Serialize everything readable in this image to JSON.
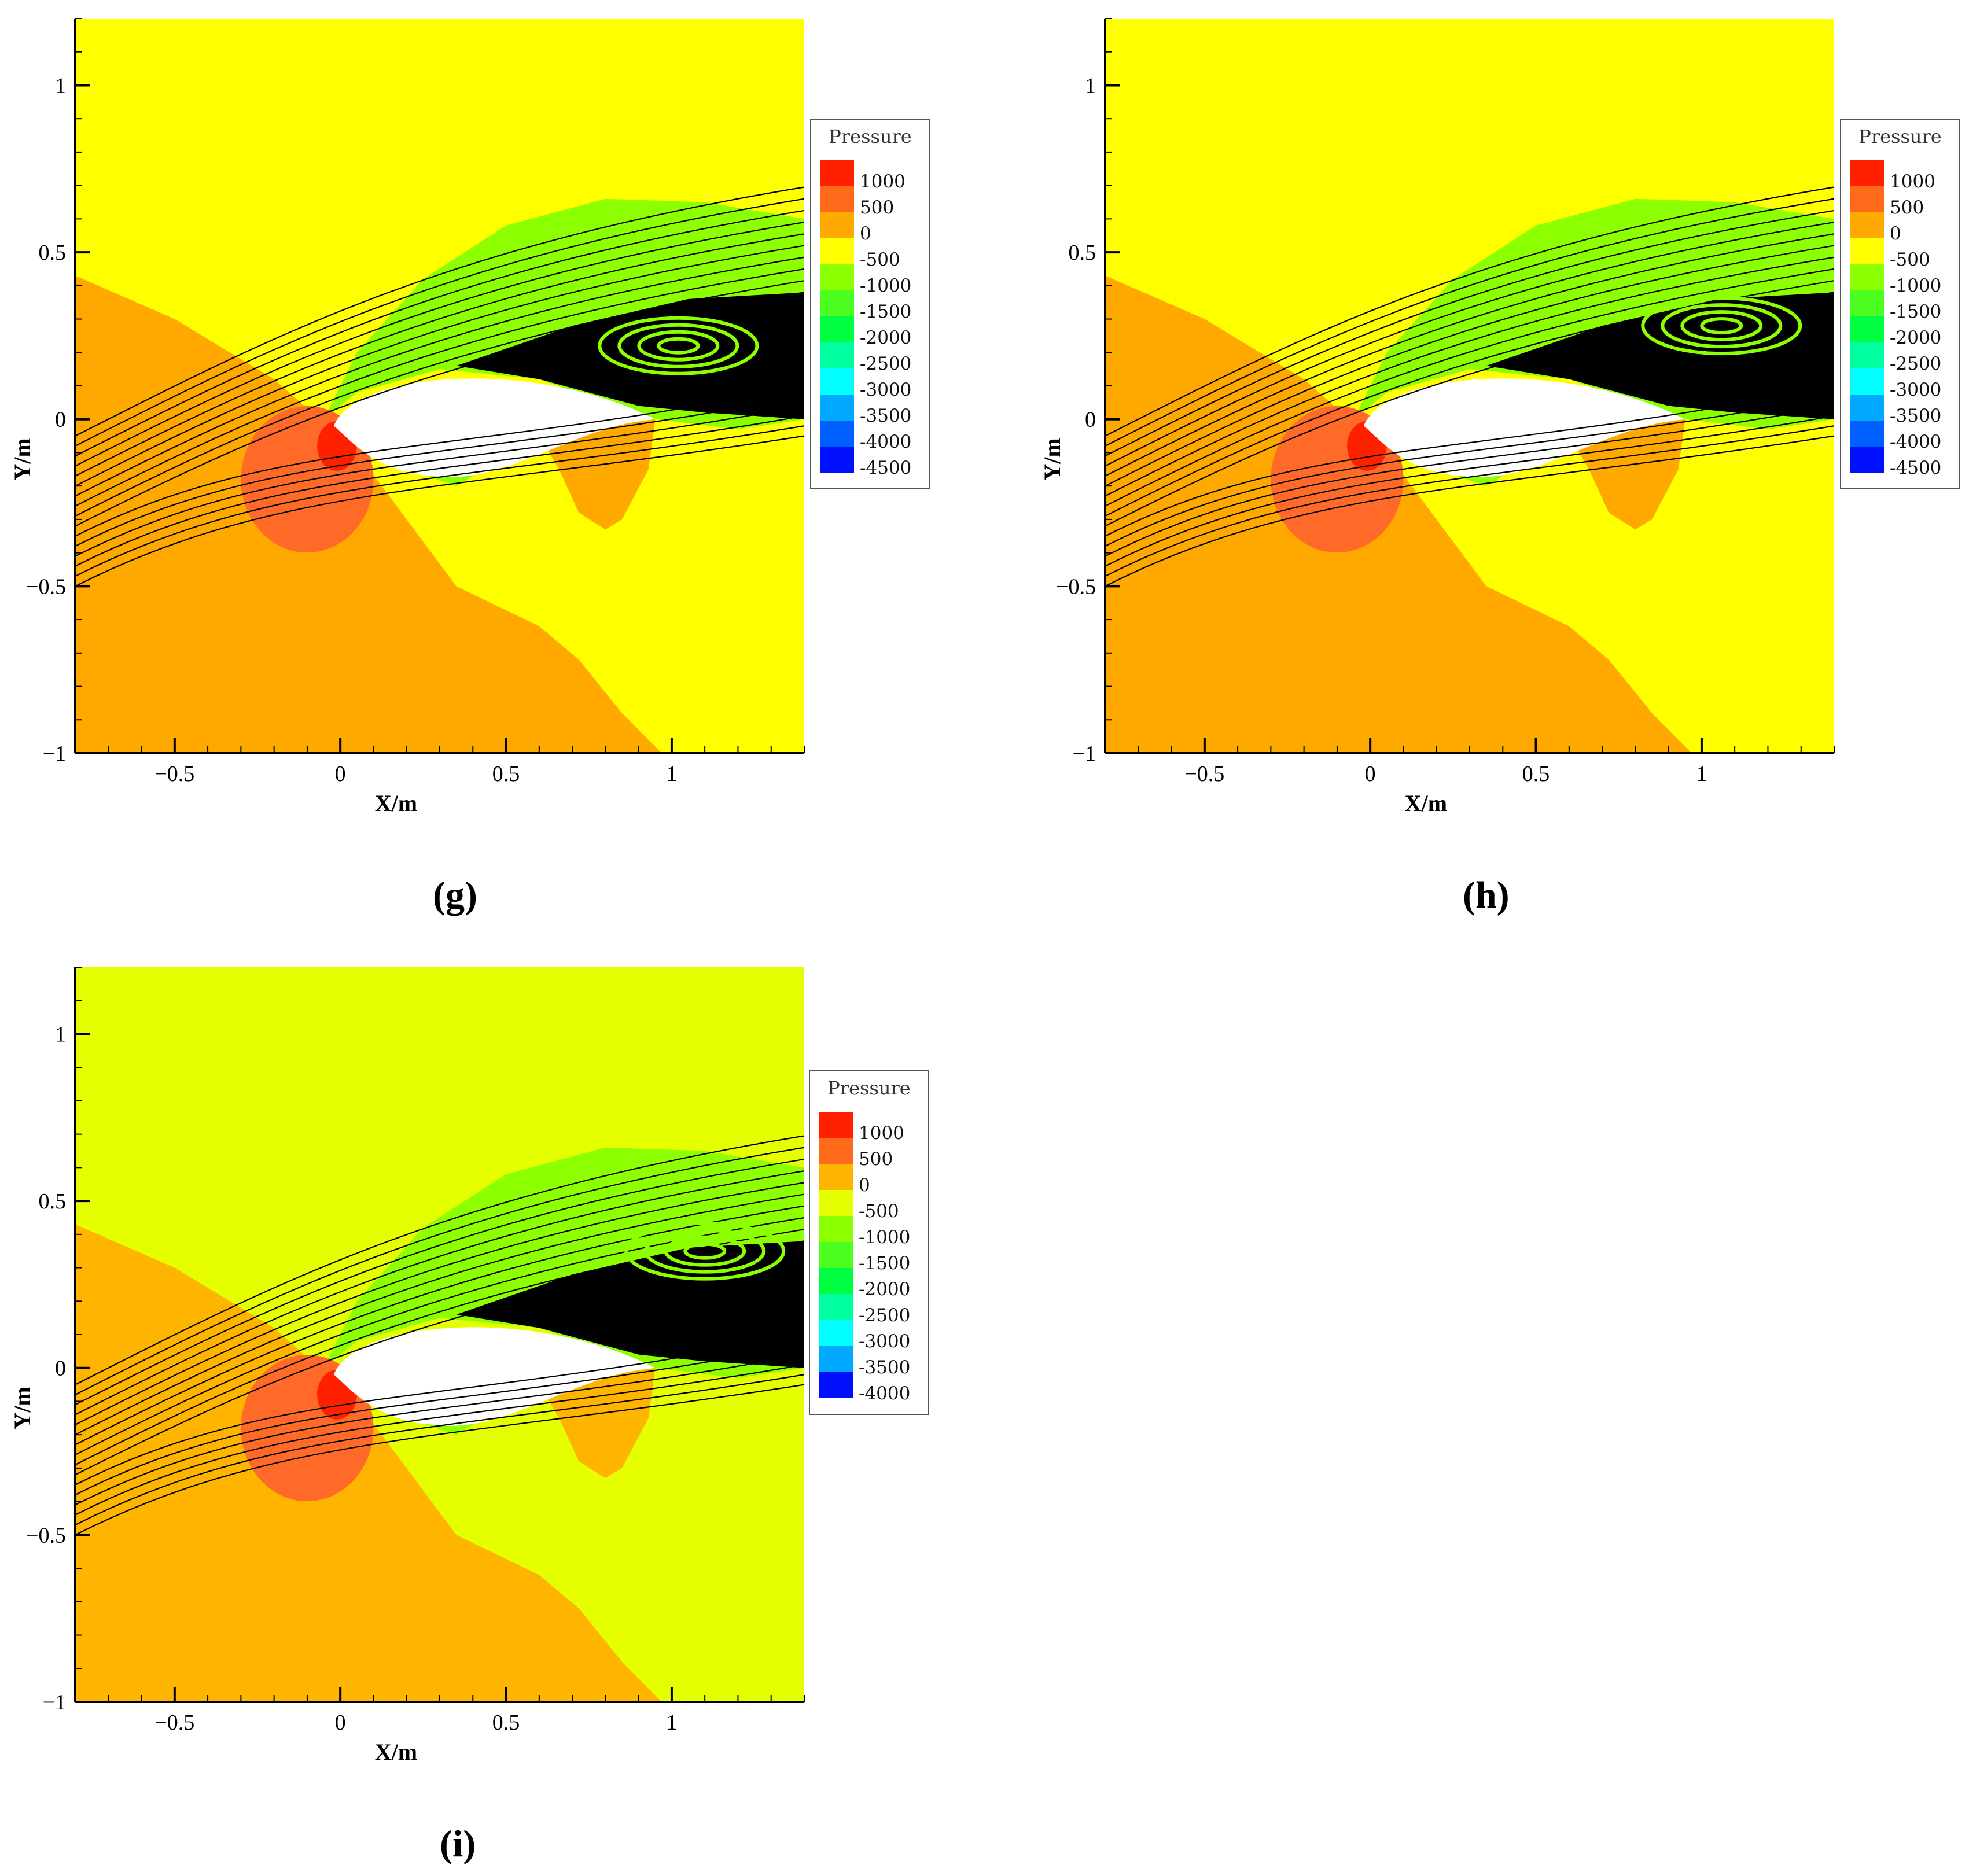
{
  "chart_data": [
    {
      "id": "g",
      "type": "heatmap",
      "caption": "(g)",
      "xlabel": "X/m",
      "ylabel": "Y/m",
      "xlim": [
        -0.8,
        1.4
      ],
      "ylim": [
        -1,
        1.2
      ],
      "xticks": [
        {
          "v": -0.5,
          "label": "−0.5"
        },
        {
          "v": 0,
          "label": "0"
        },
        {
          "v": 0.5,
          "label": "0.5"
        },
        {
          "v": 1,
          "label": "1"
        }
      ],
      "yticks": [
        {
          "v": 1,
          "label": "1"
        },
        {
          "v": 0.5,
          "label": "0.5"
        },
        {
          "v": 0,
          "label": "0"
        },
        {
          "v": -0.5,
          "label": "−0.5"
        },
        {
          "v": -1,
          "label": "−1"
        }
      ],
      "legend": {
        "title": "Pressure",
        "levels": [
          {
            "label": "1000",
            "color": "#ff2000"
          },
          {
            "label": "500",
            "color": "#ff6a1a"
          },
          {
            "label": "0",
            "color": "#ffaa00"
          },
          {
            "label": "-500",
            "color": "#ffff00"
          },
          {
            "label": "-1000",
            "color": "#8cff00"
          },
          {
            "label": "-1500",
            "color": "#4cff20"
          },
          {
            "label": "-2000",
            "color": "#00ff40"
          },
          {
            "label": "-2500",
            "color": "#00ffa0"
          },
          {
            "label": "-3000",
            "color": "#00ffff"
          },
          {
            "label": "-3500",
            "color": "#00a8ff"
          },
          {
            "label": "-4000",
            "color": "#0060ff"
          },
          {
            "label": "-4500",
            "color": "#0010ff"
          }
        ]
      },
      "field_colors": {
        "background": "#ffff00",
        "positive": "#ffa800",
        "stagnation": "#ff6a28",
        "peak": "#ff2000",
        "suction": "#8cff00"
      },
      "vortex_center": [
        1.02,
        0.22
      ]
    },
    {
      "id": "h",
      "type": "heatmap",
      "caption": "(h)",
      "xlabel": "X/m",
      "ylabel": "Y/m",
      "xlim": [
        -0.8,
        1.4
      ],
      "ylim": [
        -1,
        1.2
      ],
      "xticks": [
        {
          "v": -0.5,
          "label": "−0.5"
        },
        {
          "v": 0,
          "label": "0"
        },
        {
          "v": 0.5,
          "label": "0.5"
        },
        {
          "v": 1,
          "label": "1"
        }
      ],
      "yticks": [
        {
          "v": 1,
          "label": "1"
        },
        {
          "v": 0.5,
          "label": "0.5"
        },
        {
          "v": 0,
          "label": "0"
        },
        {
          "v": -0.5,
          "label": "−0.5"
        },
        {
          "v": -1,
          "label": "−1"
        }
      ],
      "legend": {
        "title": "Pressure",
        "levels": [
          {
            "label": "1000",
            "color": "#ff2000"
          },
          {
            "label": "500",
            "color": "#ff6a1a"
          },
          {
            "label": "0",
            "color": "#ffaa00"
          },
          {
            "label": "-500",
            "color": "#ffff00"
          },
          {
            "label": "-1000",
            "color": "#8cff00"
          },
          {
            "label": "-1500",
            "color": "#4cff20"
          },
          {
            "label": "-2000",
            "color": "#00ff40"
          },
          {
            "label": "-2500",
            "color": "#00ffa0"
          },
          {
            "label": "-3000",
            "color": "#00ffff"
          },
          {
            "label": "-3500",
            "color": "#00a8ff"
          },
          {
            "label": "-4000",
            "color": "#0060ff"
          },
          {
            "label": "-4500",
            "color": "#0010ff"
          }
        ]
      },
      "field_colors": {
        "background": "#ffff00",
        "positive": "#ffa800",
        "stagnation": "#ff6a28",
        "peak": "#ff2000",
        "suction": "#8cff00"
      },
      "vortex_center": [
        1.06,
        0.28
      ]
    },
    {
      "id": "i",
      "type": "heatmap",
      "caption": "(i)",
      "xlabel": "X/m",
      "ylabel": "Y/m",
      "xlim": [
        -0.8,
        1.4
      ],
      "ylim": [
        -1,
        1.2
      ],
      "xticks": [
        {
          "v": -0.5,
          "label": "−0.5"
        },
        {
          "v": 0,
          "label": "0"
        },
        {
          "v": 0.5,
          "label": "0.5"
        },
        {
          "v": 1,
          "label": "1"
        }
      ],
      "yticks": [
        {
          "v": 1,
          "label": "1"
        },
        {
          "v": 0.5,
          "label": "0.5"
        },
        {
          "v": 0,
          "label": "0"
        },
        {
          "v": -0.5,
          "label": "−0.5"
        },
        {
          "v": -1,
          "label": "−1"
        }
      ],
      "legend": {
        "title": "Pressure",
        "levels": [
          {
            "label": "1000",
            "color": "#ff2000"
          },
          {
            "label": "500",
            "color": "#ff6a1a"
          },
          {
            "label": "0",
            "color": "#ffb400"
          },
          {
            "label": "-500",
            "color": "#e6ff00"
          },
          {
            "label": "-1000",
            "color": "#8cff00"
          },
          {
            "label": "-1500",
            "color": "#4cff20"
          },
          {
            "label": "-2000",
            "color": "#00ff40"
          },
          {
            "label": "-2500",
            "color": "#00ffa0"
          },
          {
            "label": "-3000",
            "color": "#00ffff"
          },
          {
            "label": "-3500",
            "color": "#00a8ff"
          },
          {
            "label": "-4000",
            "color": "#0010ff"
          }
        ]
      },
      "field_colors": {
        "background": "#e6ff00",
        "positive": "#ffb400",
        "stagnation": "#ff6a28",
        "peak": "#ff2000",
        "suction": "#8cff00"
      },
      "vortex_center": [
        1.1,
        0.35
      ]
    }
  ]
}
